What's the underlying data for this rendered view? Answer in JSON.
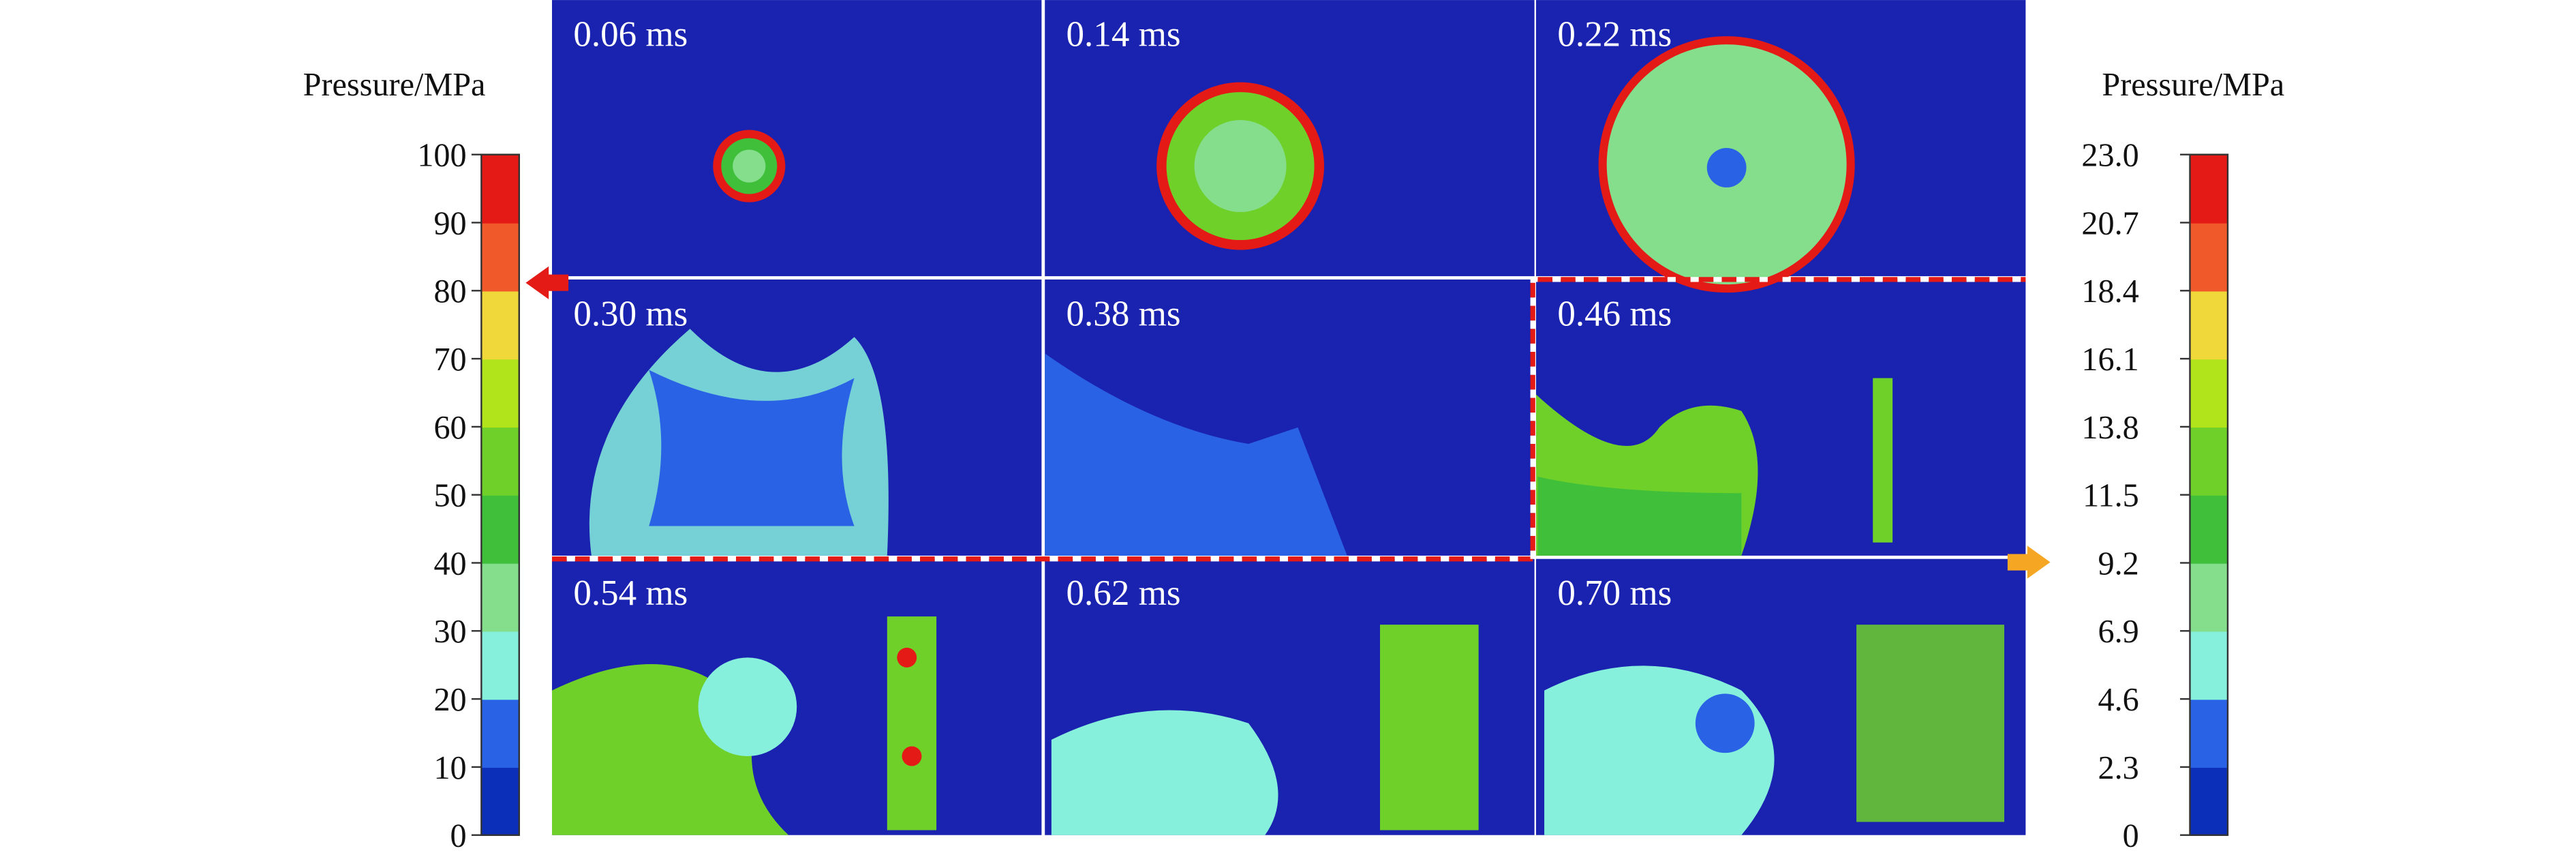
{
  "left_colorbar": {
    "title": "Pressure/MPa",
    "ticks": [
      "0",
      "10",
      "20",
      "30",
      "40",
      "50",
      "60",
      "70",
      "80",
      "90",
      "100"
    ]
  },
  "right_colorbar": {
    "title": "Pressure/MPa",
    "ticks": [
      "0",
      "2.3",
      "4.6",
      "6.9",
      "9.2",
      "11.5",
      "13.8",
      "16.1",
      "18.4",
      "20.7",
      "23.0"
    ]
  },
  "colors": [
    "#0b2fb8",
    "#2a62e6",
    "#86f0dc",
    "#84de8c",
    "#3fbf3a",
    "#6fd02a",
    "#b2e41c",
    "#f0d83a",
    "#f05a2a",
    "#e41a16"
  ],
  "panels": [
    {
      "label": "0.06 ms"
    },
    {
      "label": "0.14 ms"
    },
    {
      "label": "0.22 ms"
    },
    {
      "label": "0.30 ms"
    },
    {
      "label": "0.38 ms"
    },
    {
      "label": "0.46 ms"
    },
    {
      "label": "0.54 ms"
    },
    {
      "label": "0.62 ms"
    },
    {
      "label": "0.70 ms"
    }
  ]
}
